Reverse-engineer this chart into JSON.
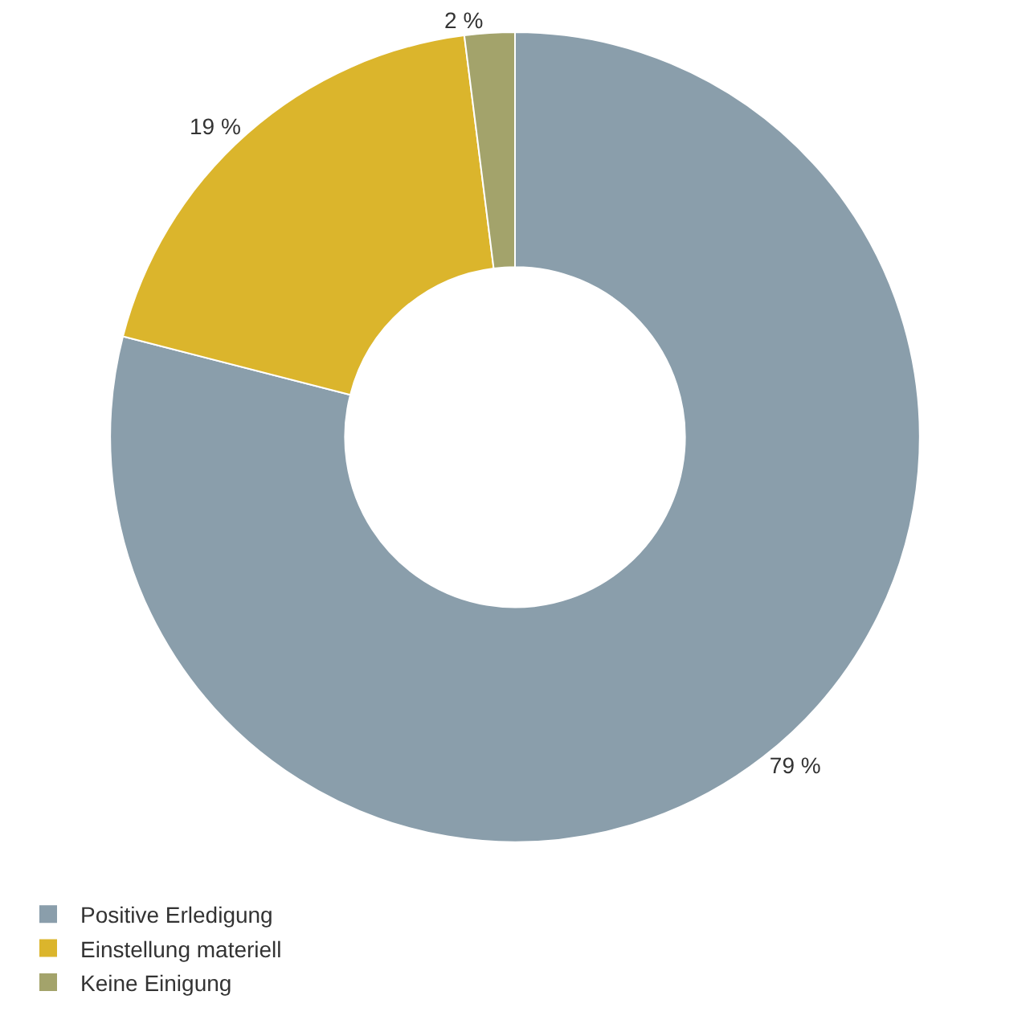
{
  "chart_data": {
    "type": "donut",
    "categories": [
      "Positive Erledigung",
      "Einstellung materiell",
      "Keine Einigung"
    ],
    "values": [
      79,
      19,
      2
    ],
    "colors": [
      "#8a9eab",
      "#dbb52c",
      "#a3a36b"
    ],
    "value_labels": [
      "79 %",
      "19 %",
      "2 %"
    ],
    "legend": "bottom left"
  }
}
